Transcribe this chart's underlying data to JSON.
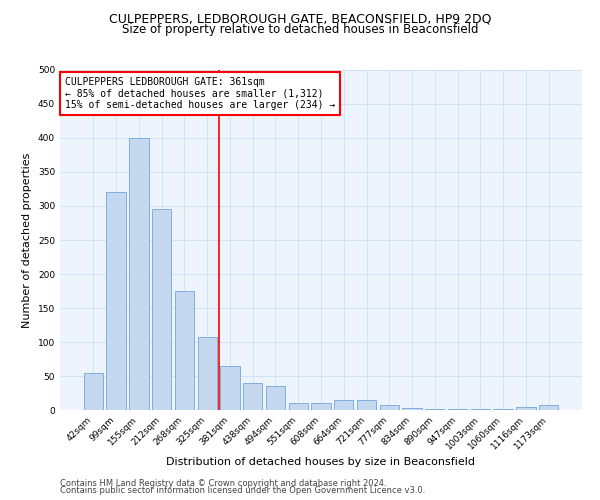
{
  "title1": "CULPEPPERS, LEDBOROUGH GATE, BEACONSFIELD, HP9 2DQ",
  "title2": "Size of property relative to detached houses in Beaconsfield",
  "xlabel": "Distribution of detached houses by size in Beaconsfield",
  "ylabel": "Number of detached properties",
  "categories": [
    "42sqm",
    "99sqm",
    "155sqm",
    "212sqm",
    "268sqm",
    "325sqm",
    "381sqm",
    "438sqm",
    "494sqm",
    "551sqm",
    "608sqm",
    "664sqm",
    "721sqm",
    "777sqm",
    "834sqm",
    "890sqm",
    "947sqm",
    "1003sqm",
    "1060sqm",
    "1116sqm",
    "1173sqm"
  ],
  "values": [
    55,
    320,
    400,
    295,
    175,
    108,
    65,
    40,
    35,
    10,
    10,
    15,
    15,
    8,
    3,
    2,
    2,
    2,
    1,
    5,
    7
  ],
  "bar_color": "#c5d8f0",
  "bar_edge_color": "#5b9bd5",
  "vline_x": 5.5,
  "vline_color": "red",
  "annotation_text": "CULPEPPERS LEDBOROUGH GATE: 361sqm\n← 85% of detached houses are smaller (1,312)\n15% of semi-detached houses are larger (234) →",
  "annotation_box_color": "white",
  "annotation_edge_color": "red",
  "ylim": [
    0,
    500
  ],
  "yticks": [
    0,
    50,
    100,
    150,
    200,
    250,
    300,
    350,
    400,
    450,
    500
  ],
  "grid_color": "#d0e4f5",
  "background_color": "#eef4fb",
  "footer1": "Contains HM Land Registry data © Crown copyright and database right 2024.",
  "footer2": "Contains public sector information licensed under the Open Government Licence v3.0.",
  "title1_fontsize": 9,
  "title2_fontsize": 8.5,
  "axis_label_fontsize": 8,
  "tick_fontsize": 6.5,
  "annotation_fontsize": 7,
  "footer_fontsize": 6
}
